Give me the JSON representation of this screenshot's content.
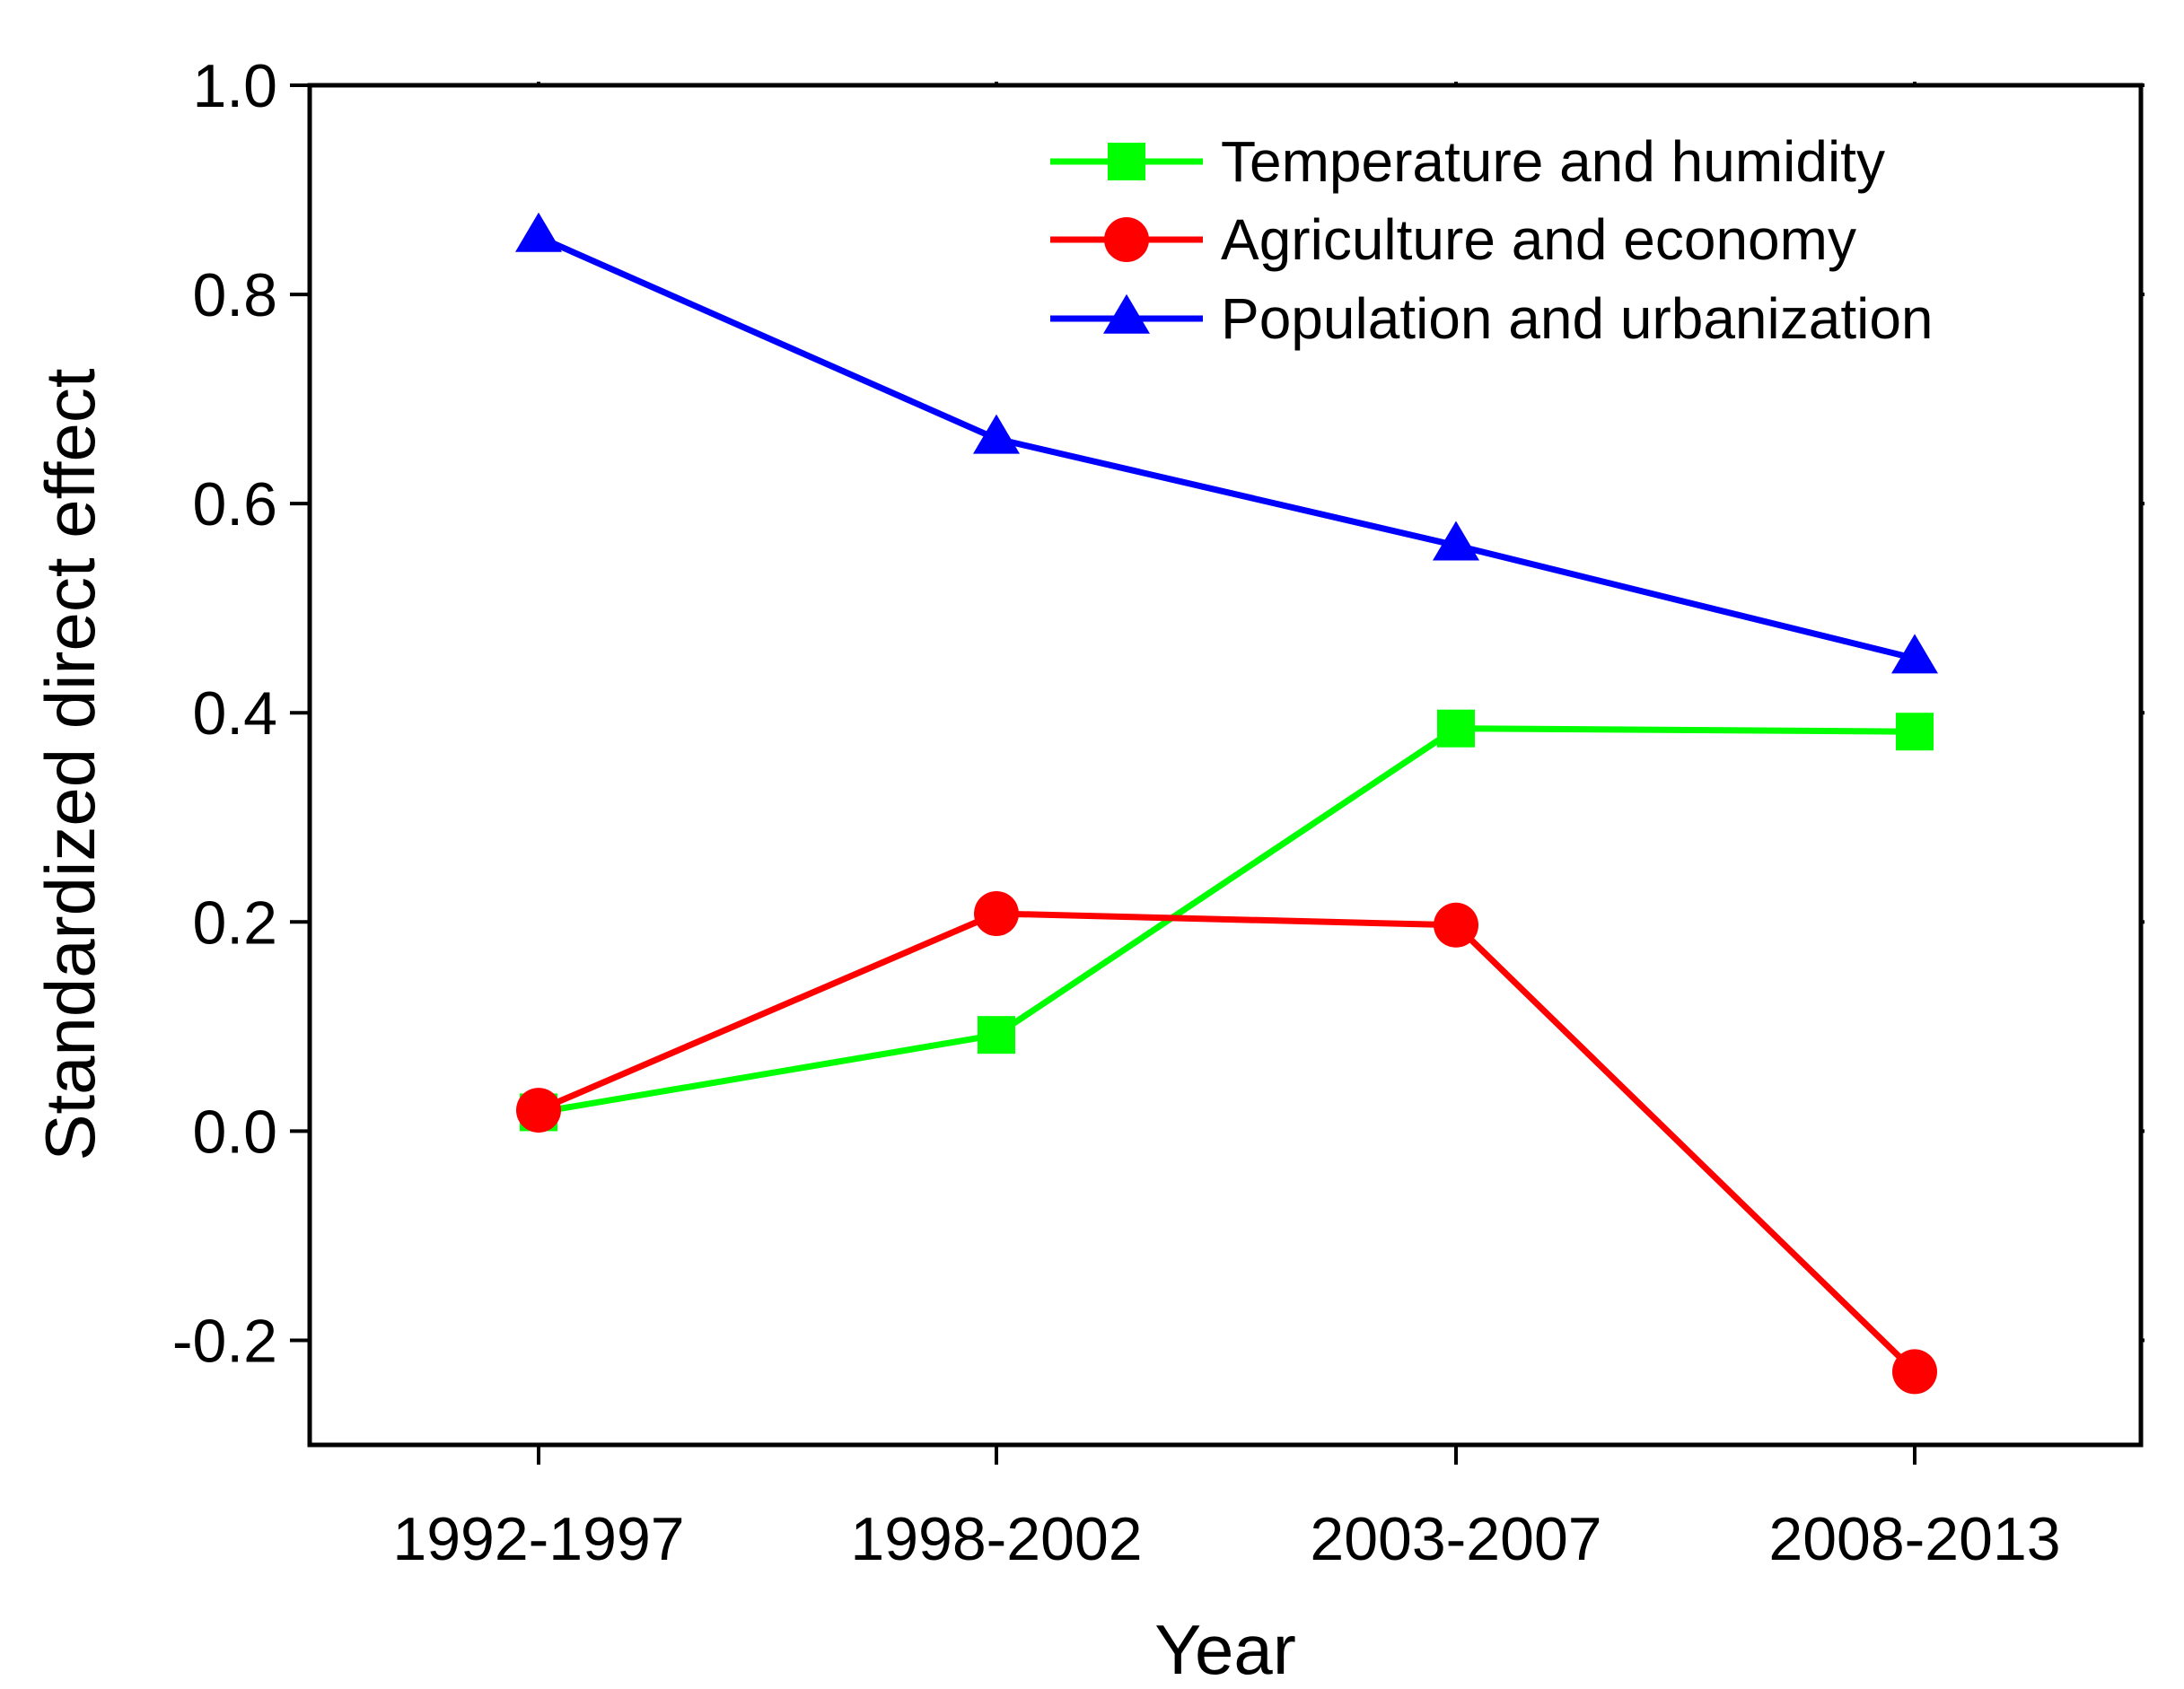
{
  "chart_data": {
    "type": "line",
    "title": "",
    "xlabel": "Year",
    "ylabel": "Standardized direct effect",
    "categories": [
      "1992-1997",
      "1998-2002",
      "2003-2007",
      "2008-2013"
    ],
    "ylim": [
      -0.3,
      1.0
    ],
    "yticks": [
      -0.2,
      0.0,
      0.2,
      0.4,
      0.6,
      0.8,
      1.0
    ],
    "ytick_labels": [
      "-0.2",
      "0.0",
      "0.2",
      "0.4",
      "0.6",
      "0.8",
      "1.0"
    ],
    "grid": false,
    "legend_position": "top-right",
    "series": [
      {
        "name": "Temperature and humidity",
        "marker": "square",
        "color": "#00ff00",
        "values": [
          0.018,
          0.092,
          0.385,
          0.382
        ]
      },
      {
        "name": "Agriculture and economy",
        "marker": "circle",
        "color": "#ff0000",
        "values": [
          0.02,
          0.208,
          0.197,
          -0.23
        ]
      },
      {
        "name": "Population and urbanization",
        "marker": "triangle",
        "color": "#0000ff",
        "values": [
          0.855,
          0.662,
          0.56,
          0.452
        ]
      }
    ]
  }
}
